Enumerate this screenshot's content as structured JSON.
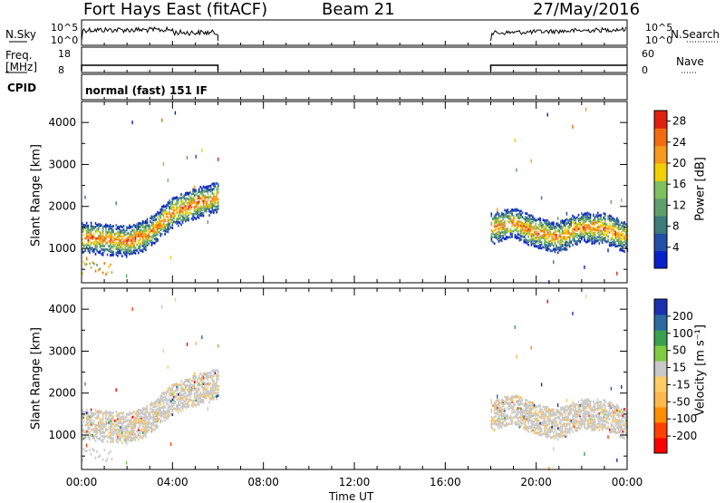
{
  "header": {
    "radar": "Fort Hays East (fitACF)",
    "beam": "Beam 21",
    "date": "27/May/2016"
  },
  "top_panels": {
    "nsky_label": "N.Sky",
    "nsky_ticks": [
      "10^5",
      "10^0"
    ],
    "nsearch_label": "N.Search",
    "nsearch_ticks": [
      "10^5",
      "10^0"
    ],
    "freq_label": "Freq.",
    "freq_unit": "[MHz]",
    "freq_ticks": [
      "18",
      "8"
    ],
    "nave_label": "Nave",
    "nave_ticks": [
      "60",
      "0"
    ],
    "cpid_label": "CPID",
    "cpid_text": "normal (fast) 151 IF"
  },
  "colors": {
    "power": [
      "#0a1fcc",
      "#234fa8",
      "#3d7a7a",
      "#5f9e6a",
      "#7fbf5f",
      "#f2d000",
      "#f59a1a",
      "#f26b10",
      "#e02010"
    ],
    "velocity": [
      "#ff0000",
      "#ff4000",
      "#ff8c00",
      "#ffb84d",
      "#ffcc66",
      "#c8c8c8",
      "#7fcc40",
      "#3aa050",
      "#2a6aa0",
      "#1a30b0"
    ]
  },
  "chart_data": [
    {
      "type": "heatmap",
      "name": "power",
      "xlabel": "",
      "ylabel": "Slant Range [km]",
      "x_ticks": [
        "00:00",
        "04:00",
        "08:00",
        "12:00",
        "16:00",
        "20:00",
        "00:00"
      ],
      "x_range_hours": [
        0,
        24
      ],
      "y_ticks": [
        1000,
        2000,
        3000,
        4000
      ],
      "ylim": [
        180,
        4500
      ],
      "colorbar": {
        "label": "Power [dB]",
        "ticks": [
          4,
          8,
          12,
          16,
          20,
          24,
          28
        ],
        "range": [
          0,
          30
        ]
      },
      "data_coverage_hours": [
        [
          0,
          6
        ],
        [
          18,
          24
        ]
      ],
      "echo_band": [
        {
          "hour": 0.0,
          "range_km": 1300
        },
        {
          "hour": 1.0,
          "range_km": 1250
        },
        {
          "hour": 2.0,
          "range_km": 1200
        },
        {
          "hour": 3.0,
          "range_km": 1400
        },
        {
          "hour": 4.0,
          "range_km": 1900
        },
        {
          "hour": 5.0,
          "range_km": 2100
        },
        {
          "hour": 6.0,
          "range_km": 2250
        },
        {
          "hour": 18.0,
          "range_km": 1500
        },
        {
          "hour": 19.0,
          "range_km": 1650
        },
        {
          "hour": 20.0,
          "range_km": 1400
        },
        {
          "hour": 21.0,
          "range_km": 1300
        },
        {
          "hour": 22.0,
          "range_km": 1550
        },
        {
          "hour": 23.0,
          "range_km": 1500
        },
        {
          "hour": 24.0,
          "range_km": 1300
        }
      ]
    },
    {
      "type": "heatmap",
      "name": "velocity",
      "xlabel": "Time UT",
      "ylabel": "Slant Range [km]",
      "x_ticks": [
        "00:00",
        "04:00",
        "08:00",
        "12:00",
        "16:00",
        "20:00",
        "00:00"
      ],
      "x_range_hours": [
        0,
        24
      ],
      "y_ticks": [
        1000,
        2000,
        3000,
        4000
      ],
      "ylim": [
        180,
        4500
      ],
      "colorbar": {
        "label": "Velocity [m s⁻¹]",
        "ticks": [
          -200,
          -100,
          -50,
          -15,
          15,
          50,
          100,
          200
        ]
      },
      "data_coverage_hours": [
        [
          0,
          6
        ],
        [
          18,
          24
        ]
      ]
    }
  ]
}
